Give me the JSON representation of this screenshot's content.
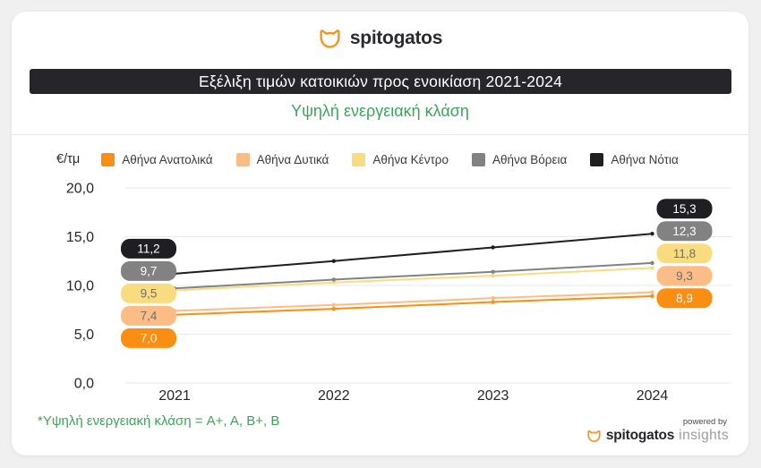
{
  "header": {
    "brand": "spitogatos"
  },
  "colors": {
    "brand_orange": "#f7941d",
    "title_bar_bg": "#26262a",
    "green_accent": "#3da55a",
    "gridline": "#e9e9e9"
  },
  "chart_data": {
    "type": "line",
    "title": "Εξέλιξη τιμών κατοικιών προς ενοικίαση 2021-2024",
    "subtitle": "Υψηλή ενεργειακή κλάση",
    "unit_label": "€/τμ",
    "x_labels": [
      "2021",
      "2022",
      "2023",
      "2024"
    ],
    "yticks": [
      0,
      5,
      10,
      15,
      20
    ],
    "ytick_labels": [
      "0,0",
      "5,0",
      "10,0",
      "15,0",
      "20,0"
    ],
    "ylim": [
      0,
      20
    ],
    "grid": "horizontal-only",
    "legend_position": "top",
    "value_labels_shown_at": [
      "2021",
      "2024"
    ],
    "intermediate_values_estimated": true,
    "series": [
      {
        "name": "Αθήνα Ανατολικά",
        "color": "#fa8e13",
        "label_text_color": "#ffffff",
        "values": [
          7.0,
          7.6,
          8.3,
          8.9
        ],
        "label_start": "7,0",
        "label_end": "8,9"
      },
      {
        "name": "Αθήνα Δυτικά",
        "color": "#fbbd85",
        "label_text_color": "#6f6f6f",
        "values": [
          7.4,
          8.0,
          8.7,
          9.3
        ],
        "label_start": "7,4",
        "label_end": "9,3"
      },
      {
        "name": "Αθήνα Κέντρο",
        "color": "#fadc80",
        "label_text_color": "#6f6f6f",
        "values": [
          9.5,
          10.3,
          11.0,
          11.8
        ],
        "label_start": "9,5",
        "label_end": "11,8"
      },
      {
        "name": "Αθήνα Βόρεια",
        "color": "#828282",
        "label_text_color": "#ffffff",
        "values": [
          9.7,
          10.6,
          11.4,
          12.3
        ],
        "label_start": "9,7",
        "label_end": "12,3"
      },
      {
        "name": "Αθήνα Νότια",
        "color": "#1f1f23",
        "label_text_color": "#ffffff",
        "values": [
          11.2,
          12.5,
          13.9,
          15.3
        ],
        "label_start": "11,2",
        "label_end": "15,3"
      }
    ]
  },
  "footnote": {
    "text": "*Υψηλή ενεργειακή κλάση = A+, A, B+, B"
  },
  "footer": {
    "powered_by": "powered by",
    "brand": "spitogatos",
    "product": "insights"
  }
}
